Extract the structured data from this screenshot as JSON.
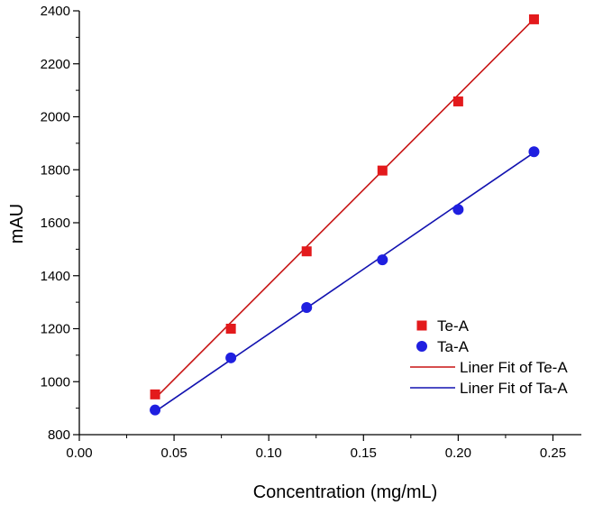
{
  "chart_data": {
    "type": "scatter",
    "title": "",
    "xlabel": "Concentration (mg/mL)",
    "ylabel": "mAU",
    "xlim": [
      0.0,
      0.265
    ],
    "ylim": [
      800,
      2400
    ],
    "xticks": [
      0.0,
      0.05,
      0.1,
      0.15,
      0.2,
      0.25
    ],
    "xtick_labels": [
      "0.00",
      "0.05",
      "0.10",
      "0.15",
      "0.20",
      "0.25"
    ],
    "yticks": [
      800,
      1000,
      1200,
      1400,
      1600,
      1800,
      2000,
      2200,
      2400
    ],
    "ytick_labels": [
      "800",
      "1000",
      "1200",
      "1400",
      "1600",
      "1800",
      "2000",
      "2200",
      "2400"
    ],
    "grid": false,
    "legend_position": "bottom-right",
    "series": [
      {
        "name": "Te-A",
        "kind": "scatter",
        "marker": "square",
        "color": "#e31a1c",
        "x": [
          0.04,
          0.08,
          0.12,
          0.16,
          0.2,
          0.24
        ],
        "y": [
          952,
          1200,
          1492,
          1797,
          2058,
          2368
        ]
      },
      {
        "name": "Ta-A",
        "kind": "scatter",
        "marker": "circle",
        "color": "#1f1fe0",
        "x": [
          0.04,
          0.08,
          0.12,
          0.16,
          0.2,
          0.24
        ],
        "y": [
          893,
          1090,
          1280,
          1460,
          1650,
          1868
        ]
      },
      {
        "name": "Liner Fit of Te-A",
        "kind": "line",
        "color": "#c81414",
        "x": [
          0.04,
          0.24
        ],
        "y": [
          937,
          2369
        ]
      },
      {
        "name": "Liner Fit of Ta-A",
        "kind": "line",
        "color": "#1212b0",
        "x": [
          0.04,
          0.24
        ],
        "y": [
          887,
          1865
        ]
      }
    ]
  }
}
